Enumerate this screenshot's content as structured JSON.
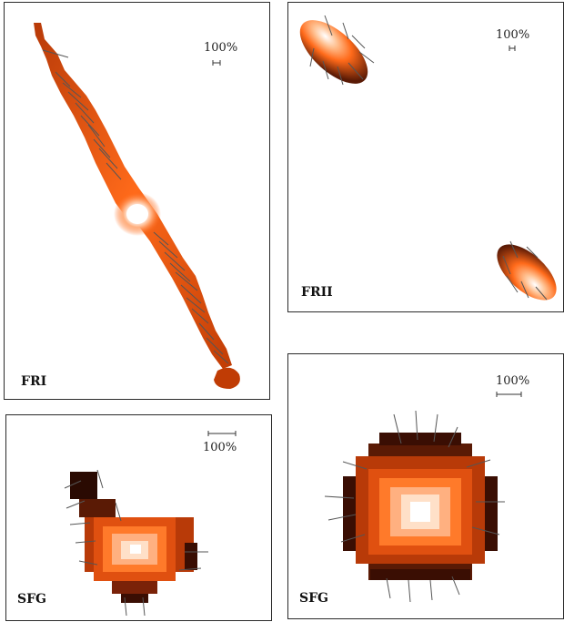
{
  "panels": [
    {
      "id": "fri",
      "label": "FRI",
      "scale_label": "100%"
    },
    {
      "id": "frii",
      "label": "FRII",
      "scale_label": "100%"
    },
    {
      "id": "sfg1",
      "label": "SFG",
      "scale_label": "100%"
    },
    {
      "id": "sfg2",
      "label": "SFG",
      "scale_label": "100%"
    }
  ],
  "colors": {
    "core": "#ffffff",
    "mid": "#ff6a1a",
    "outer": "#c83c00",
    "edge": "#5a1a05",
    "vector": "#555555",
    "frame": "#2a2a2a"
  }
}
